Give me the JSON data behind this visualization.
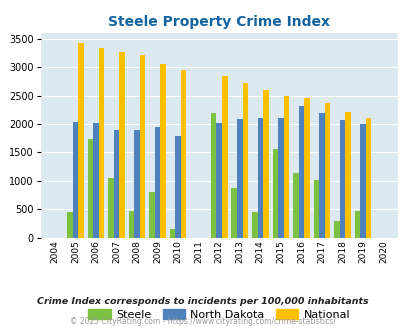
{
  "title": "Steele Property Crime Index",
  "all_years": [
    2004,
    2005,
    2006,
    2007,
    2008,
    2009,
    2010,
    2011,
    2012,
    2013,
    2014,
    2015,
    2016,
    2017,
    2018,
    2019,
    2020
  ],
  "steele": [
    0,
    450,
    1730,
    1050,
    470,
    800,
    160,
    0,
    2200,
    870,
    450,
    1560,
    1130,
    1010,
    290,
    460,
    0
  ],
  "north_dakota": [
    0,
    2030,
    2010,
    1900,
    1900,
    1950,
    1780,
    0,
    2010,
    2090,
    2110,
    2110,
    2310,
    2200,
    2070,
    2000,
    0
  ],
  "national": [
    0,
    3420,
    3340,
    3270,
    3220,
    3050,
    2950,
    0,
    2850,
    2720,
    2600,
    2490,
    2460,
    2360,
    2210,
    2110,
    0
  ],
  "steele_color": "#7dc142",
  "nd_color": "#4f81bd",
  "national_color": "#ffc000",
  "bg_color": "#dce9f0",
  "title_color": "#1464a0",
  "ylim": [
    0,
    3600
  ],
  "yticks": [
    0,
    500,
    1000,
    1500,
    2000,
    2500,
    3000,
    3500
  ],
  "footer_note": "Crime Index corresponds to incidents per 100,000 inhabitants",
  "copyright": "© 2025 CityRating.com - https://www.cityrating.com/crime-statistics/",
  "legend_labels": [
    "Steele",
    "North Dakota",
    "National"
  ],
  "bar_width": 0.27
}
